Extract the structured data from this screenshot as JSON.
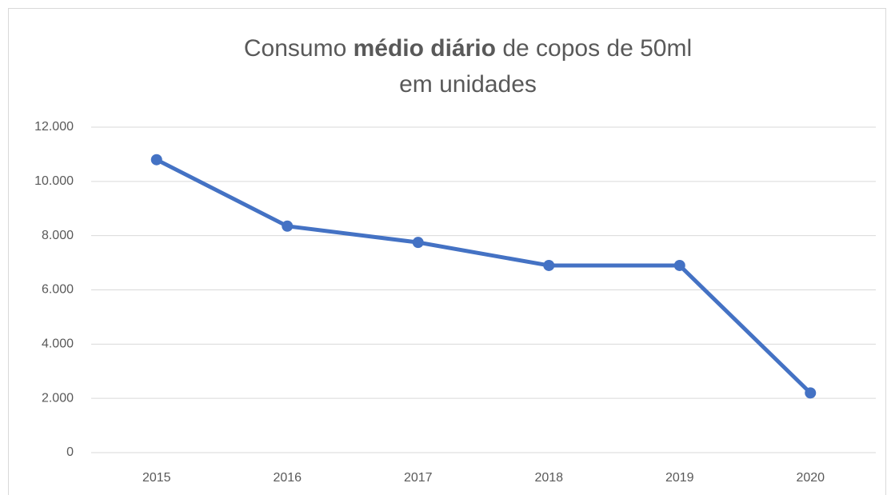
{
  "chart_data": {
    "type": "line",
    "title": [
      [
        {
          "text": "Consumo"
        },
        {
          "text": "médio diário",
          "bold": true
        },
        {
          "text": "de copos de 50ml"
        }
      ],
      [
        {
          "text": "em unidades"
        }
      ]
    ],
    "categories": [
      "2015",
      "2016",
      "2017",
      "2018",
      "2019",
      "2020"
    ],
    "series": [
      {
        "color": "#4472c4",
        "values": [
          10800,
          8350,
          7750,
          6900,
          6900,
          2200
        ]
      }
    ],
    "ylim": [
      0,
      12000
    ],
    "yticks": [
      0,
      {
        "value": 2000,
        "label": "2.000"
      },
      {
        "value": 4000,
        "label": "4.000"
      },
      {
        "value": 6000,
        "label": "6.000"
      },
      {
        "value": 8000,
        "label": "8.000"
      },
      {
        "value": 10000,
        "label": "10.000"
      },
      {
        "value": 12000,
        "label": "12.000"
      }
    ],
    "grid": true
  }
}
